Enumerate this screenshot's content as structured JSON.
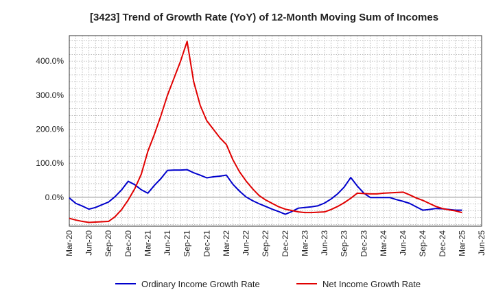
{
  "chart_data": {
    "type": "line",
    "title": "[3423]  Trend of Growth Rate (YoY) of 12-Month Moving Sum of Incomes",
    "xlabel": "",
    "ylabel": "",
    "ylim": [
      -85,
      475
    ],
    "yticks": [
      0,
      100,
      200,
      300,
      400
    ],
    "ytick_labels": [
      "0.0%",
      "100.0%",
      "200.0%",
      "300.0%",
      "400.0%"
    ],
    "x_tick_labels": [
      "Mar-20",
      "Jun-20",
      "Sep-20",
      "Dec-20",
      "Mar-21",
      "Jun-21",
      "Sep-21",
      "Dec-21",
      "Mar-22",
      "Jun-22",
      "Sep-22",
      "Dec-22",
      "Mar-23",
      "Jun-23",
      "Sep-23",
      "Dec-23",
      "Mar-24",
      "Jun-24",
      "Sep-24",
      "Dec-24",
      "Mar-25",
      "Jun-25"
    ],
    "x": [
      "Mar-20",
      "Apr-20",
      "May-20",
      "Jun-20",
      "Jul-20",
      "Aug-20",
      "Sep-20",
      "Oct-20",
      "Nov-20",
      "Dec-20",
      "Jan-21",
      "Feb-21",
      "Mar-21",
      "Apr-21",
      "May-21",
      "Jun-21",
      "Jul-21",
      "Aug-21",
      "Sep-21",
      "Oct-21",
      "Nov-21",
      "Dec-21",
      "Jan-22",
      "Feb-22",
      "Mar-22",
      "Apr-22",
      "May-22",
      "Jun-22",
      "Jul-22",
      "Aug-22",
      "Sep-22",
      "Oct-22",
      "Nov-22",
      "Dec-22",
      "Jan-23",
      "Feb-23",
      "Mar-23",
      "Apr-23",
      "May-23",
      "Jun-23",
      "Jul-23",
      "Aug-23",
      "Sep-23",
      "Oct-23",
      "Nov-23",
      "Dec-23",
      "Jan-24",
      "Feb-24",
      "Mar-24",
      "Apr-24",
      "May-24",
      "Jun-24",
      "Jul-24",
      "Aug-24",
      "Sep-24",
      "Oct-24",
      "Nov-24",
      "Dec-24",
      "Jan-25",
      "Feb-25",
      "Mar-25"
    ],
    "series": [
      {
        "name": "Ordinary Income Growth Rate",
        "color": "#0000cc",
        "values": [
          -2,
          -18,
          -26,
          -35,
          -30,
          -22,
          -14,
          2,
          22,
          47,
          37,
          22,
          12,
          35,
          55,
          79,
          80,
          80,
          81,
          72,
          65,
          57,
          60,
          62,
          65,
          38,
          18,
          1,
          -10,
          -19,
          -27,
          -35,
          -42,
          -50,
          -42,
          -32,
          -30,
          -28,
          -25,
          -17,
          -5,
          10,
          30,
          58,
          33,
          12,
          -1,
          -1,
          -1,
          -1,
          -7,
          -12,
          -18,
          -28,
          -38,
          -36,
          -33,
          -34,
          -36,
          -38,
          -38
        ],
        "values_note": ""
      },
      {
        "name": "Net Income Growth Rate",
        "color": "#e00000",
        "values": [
          -62,
          -67,
          -71,
          -74,
          -73,
          -72,
          -71,
          -57,
          -36,
          -8,
          25,
          68,
          135,
          185,
          240,
          300,
          350,
          400,
          458,
          340,
          270,
          225,
          200,
          175,
          155,
          110,
          75,
          48,
          25,
          5,
          -8,
          -18,
          -28,
          -35,
          -39,
          -43,
          -45,
          -45,
          -44,
          -43,
          -36,
          -27,
          -16,
          -3,
          12,
          11,
          10,
          10,
          12,
          13,
          14,
          15,
          7,
          -2,
          -9,
          -18,
          -27,
          -33,
          -37,
          -40,
          -45
        ]
      }
    ],
    "grid": true,
    "legend_placement": "bottom"
  }
}
